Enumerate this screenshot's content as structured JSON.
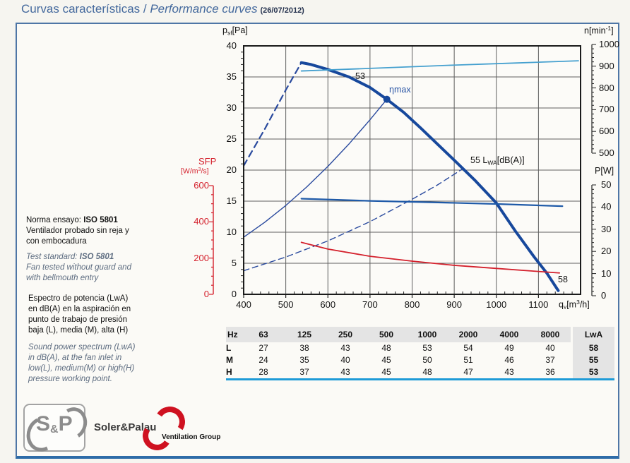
{
  "header": {
    "title_es": "Curvas características",
    "separator": " / ",
    "title_en": "Performance curves",
    "date": "(26/07/2012)"
  },
  "chart_data": {
    "type": "line",
    "title": "Fan performance curves",
    "x_axis": {
      "title": "qv",
      "unit": "[m3/h]",
      "min": 400,
      "max": 1200,
      "minor_step": 20,
      "ticks": [
        400,
        500,
        600,
        700,
        800,
        900,
        1000,
        1100
      ]
    },
    "y_axes": {
      "pressure": {
        "title": "psf",
        "unit": "[Pa]",
        "min": 0,
        "max": 40,
        "ticks": [
          40,
          35,
          30,
          25,
          20,
          15,
          10,
          5,
          0
        ]
      },
      "speed": {
        "title": "n",
        "unit": "[min-1]",
        "min": 500,
        "max": 1000,
        "ticks": [
          1000,
          900,
          800,
          700,
          600,
          500
        ]
      },
      "power": {
        "title": "P",
        "unit": "[W]",
        "min": 0,
        "max": 50,
        "ticks": [
          50,
          40,
          30,
          20,
          10,
          0
        ]
      },
      "sfp": {
        "title": "SFP",
        "unit": "[W/m3/s]",
        "min": 0,
        "max": 600,
        "ticks": [
          600,
          400,
          200,
          0
        ]
      }
    },
    "series": [
      {
        "name": "pressure-unstable",
        "axis": "pressure",
        "color": "#2a4a9e",
        "width": 2.2,
        "dash": "9 6",
        "points": [
          [
            400,
            20.7
          ],
          [
            450,
            26.6
          ],
          [
            500,
            32.9
          ],
          [
            537,
            37.3
          ]
        ]
      },
      {
        "name": "pressure",
        "axis": "pressure",
        "color": "#17489c",
        "width": 4,
        "dash": null,
        "points": [
          [
            537,
            37.3
          ],
          [
            560,
            37.0
          ],
          [
            600,
            36.2
          ],
          [
            650,
            35.0
          ],
          [
            700,
            33.3
          ],
          [
            740,
            31.4
          ],
          [
            780,
            29.3
          ],
          [
            820,
            26.8
          ],
          [
            860,
            24.2
          ],
          [
            900,
            21.6
          ],
          [
            950,
            18.3
          ],
          [
            1000,
            14.7
          ],
          [
            1045,
            10.2
          ],
          [
            1090,
            6.0
          ],
          [
            1120,
            3.4
          ],
          [
            1147,
            0.6
          ]
        ]
      },
      {
        "name": "system-line-bep",
        "axis": "pressure",
        "color": "#2a4a9e",
        "width": 1.4,
        "dash": null,
        "points": [
          [
            400,
            9.2
          ],
          [
            450,
            11.6
          ],
          [
            500,
            14.3
          ],
          [
            550,
            17.3
          ],
          [
            600,
            20.6
          ],
          [
            650,
            24.2
          ],
          [
            700,
            28.1
          ],
          [
            740,
            31.4
          ]
        ]
      },
      {
        "name": "system-line-medium",
        "axis": "pressure",
        "color": "#2a4a9e",
        "width": 1.4,
        "dash": "8 5",
        "points": [
          [
            400,
            3.8
          ],
          [
            500,
            6.0
          ],
          [
            600,
            8.6
          ],
          [
            700,
            11.7
          ],
          [
            800,
            15.3
          ],
          [
            860,
            17.6
          ],
          [
            920,
            20.2
          ]
        ]
      },
      {
        "name": "speed",
        "axis": "speed",
        "color": "#45a0cf",
        "width": 1.8,
        "dash": null,
        "points": [
          [
            537,
            878
          ],
          [
            700,
            890
          ],
          [
            900,
            905
          ],
          [
            1050,
            915
          ],
          [
            1195,
            925
          ]
        ]
      },
      {
        "name": "power",
        "axis": "power",
        "color": "#1f5aa8",
        "width": 2.2,
        "dash": null,
        "points": [
          [
            537,
            43.8
          ],
          [
            700,
            42.8
          ],
          [
            900,
            41.9
          ],
          [
            1000,
            41.4
          ],
          [
            1157,
            40.4
          ]
        ]
      },
      {
        "name": "sfp",
        "axis": "sfp",
        "color": "#d4202c",
        "width": 1.8,
        "dash": null,
        "points": [
          [
            537,
            287
          ],
          [
            600,
            250
          ],
          [
            700,
            210
          ],
          [
            800,
            183
          ],
          [
            900,
            160
          ],
          [
            1000,
            143
          ],
          [
            1100,
            126
          ],
          [
            1150,
            118
          ]
        ]
      }
    ],
    "marker": {
      "name": "bep-point",
      "axis": "pressure",
      "x": 740,
      "y": 31.4,
      "color": "#17489c"
    },
    "point_labels": {
      "high": "53",
      "bep": "ηmax",
      "medium_prefix": "55 L",
      "medium_sub": "WA",
      "medium_suffix": "[dB(A)]",
      "low": "58"
    }
  },
  "axis_titles": {
    "pressure_main": "p",
    "pressure_sub": "sf",
    "pressure_unit": "[Pa]",
    "speed_main": "n",
    "speed_unit_a": "[min",
    "speed_sup": "-1",
    "speed_unit_b": "]",
    "power_main": "P",
    "power_unit": "[W]",
    "sfp_main": "SFP",
    "sfp_unit_a": "[W/m",
    "sfp_sup": "3",
    "sfp_unit_b": "/s]",
    "flow_main": "q",
    "flow_sub": "v",
    "flow_unit_a": "[m",
    "flow_sup": "3",
    "flow_unit_b": "/h]"
  },
  "notes": {
    "standard_es": {
      "prefix": "Norma ensayo: ",
      "bold": "ISO 5801",
      "lines": [
        "Ventilador probado sin reja y",
        "con embocadura"
      ]
    },
    "standard_en": {
      "prefix": "Test standard: ",
      "bold": "ISO 5801",
      "lines": [
        "Fan tested without guard and",
        "with bellmouth entry"
      ]
    },
    "spectrum_es": {
      "lines": [
        "Espectro de potencia (LwA)",
        "en dB(A) en la aspiración en",
        "punto de trabajo de presión",
        "baja (L), media (M), alta (H)"
      ]
    },
    "spectrum_en": {
      "lines": [
        "Sound power spectrum (LwA)",
        "in dB(A), at the fan inlet in",
        "low(L), medium(M) or high(H)",
        "pressure working point."
      ]
    }
  },
  "table": {
    "col_headers": [
      "Hz",
      "63",
      "125",
      "250",
      "500",
      "1000",
      "2000",
      "4000",
      "8000",
      "LwA"
    ],
    "rows": [
      {
        "label": "L",
        "values": [
          27,
          38,
          43,
          48,
          53,
          54,
          49,
          40
        ],
        "lwa": 58
      },
      {
        "label": "M",
        "values": [
          24,
          35,
          40,
          45,
          50,
          51,
          46,
          37
        ],
        "lwa": 55
      },
      {
        "label": "H",
        "values": [
          28,
          37,
          43,
          45,
          48,
          47,
          43,
          36
        ],
        "lwa": 53
      }
    ]
  },
  "logo": {
    "s": "S",
    "amp": "&",
    "p": "P",
    "brand": "Soler&Palau",
    "group": "Ventilation Group"
  }
}
